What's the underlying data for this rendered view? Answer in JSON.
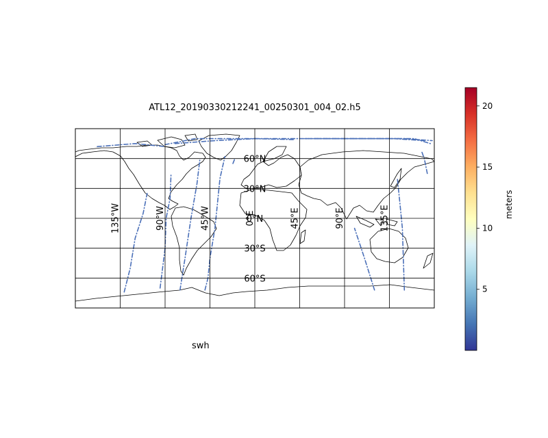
{
  "figure": {
    "title": "ATL12_20190330212241_00250301_004_02.h5",
    "caption": "swh"
  },
  "map": {
    "projection": "PlateCarree",
    "lon_range": [
      -180,
      180
    ],
    "lat_range": [
      -90,
      90
    ],
    "gridlines": true,
    "lon_ticks": [
      {
        "value": -135,
        "label": "135°W"
      },
      {
        "value": -90,
        "label": "90°W"
      },
      {
        "value": -45,
        "label": "45°W"
      },
      {
        "value": 0,
        "label": "0°E"
      },
      {
        "value": 45,
        "label": "45°E"
      },
      {
        "value": 90,
        "label": "90°E"
      },
      {
        "value": 135,
        "label": "135°E"
      }
    ],
    "lat_ticks": [
      {
        "value": 60,
        "label": "60°N"
      },
      {
        "value": 30,
        "label": "30°N"
      },
      {
        "value": 0,
        "label": "0°N"
      },
      {
        "value": -30,
        "label": "30°S"
      },
      {
        "value": -60,
        "label": "60°S"
      }
    ]
  },
  "colorbar": {
    "label": "meters",
    "colormap": "RdYlBu_r",
    "min": 0,
    "max": 21.5,
    "ticks": [
      {
        "value": 5,
        "label": "5"
      },
      {
        "value": 10,
        "label": "10"
      },
      {
        "value": 15,
        "label": "15"
      },
      {
        "value": 20,
        "label": "20"
      }
    ]
  },
  "chart_data": {
    "type": "scatter",
    "variable": "swh",
    "units": "meters",
    "value_range_shown": [
      0,
      3
    ],
    "series": [
      {
        "points": [
          [
            -131,
            -74
          ],
          [
            -125,
            -50
          ],
          [
            -120,
            -20
          ],
          [
            -112,
            5
          ],
          [
            -108,
            25
          ]
        ]
      },
      {
        "points": [
          [
            -95,
            -70
          ],
          [
            -90,
            -30
          ],
          [
            -89,
            0
          ],
          [
            -85,
            20
          ],
          [
            -84,
            45
          ]
        ]
      },
      {
        "points": [
          [
            -75,
            -72
          ],
          [
            -70,
            -40
          ],
          [
            -64,
            0
          ],
          [
            -58,
            35
          ],
          [
            -55,
            60
          ]
        ]
      },
      {
        "points": [
          [
            -50,
            -72
          ],
          [
            -47,
            -60
          ],
          [
            -45,
            -40
          ],
          [
            -40,
            -10
          ],
          [
            -35,
            40
          ],
          [
            -30,
            62
          ]
        ]
      },
      {
        "points": [
          [
            -22,
            55
          ],
          [
            -20,
            60
          ]
        ]
      },
      {
        "points": [
          [
            120,
            -72
          ],
          [
            110,
            -40
          ],
          [
            100,
            -10
          ]
        ]
      },
      {
        "points": [
          [
            150,
            -72
          ],
          [
            148,
            -10
          ],
          [
            145,
            20
          ],
          [
            143,
            40
          ]
        ]
      },
      {
        "points": [
          [
            173,
            45
          ],
          [
            170,
            60
          ],
          [
            167,
            68
          ]
        ]
      },
      {
        "points": [
          [
            -158,
            72
          ],
          [
            -120,
            75
          ],
          [
            -90,
            72
          ]
        ]
      },
      {
        "points": [
          [
            -80,
            75
          ],
          [
            -40,
            78
          ],
          [
            0,
            80
          ],
          [
            60,
            80
          ],
          [
            100,
            80
          ],
          [
            130,
            80
          ],
          [
            160,
            80
          ],
          [
            176,
            75
          ]
        ]
      },
      {
        "points": [
          [
            60,
            80
          ],
          [
            90,
            80
          ],
          [
            120,
            80
          ],
          [
            150,
            80
          ],
          [
            178,
            78
          ]
        ]
      },
      {
        "points": [
          [
            50,
            80
          ],
          [
            80,
            80
          ],
          [
            110,
            80
          ],
          [
            140,
            80
          ],
          [
            170,
            78
          ]
        ]
      },
      {
        "points": [
          [
            -90,
            74
          ],
          [
            -60,
            80
          ],
          [
            -30,
            80
          ],
          [
            0,
            80
          ],
          [
            40,
            79
          ]
        ]
      }
    ]
  }
}
